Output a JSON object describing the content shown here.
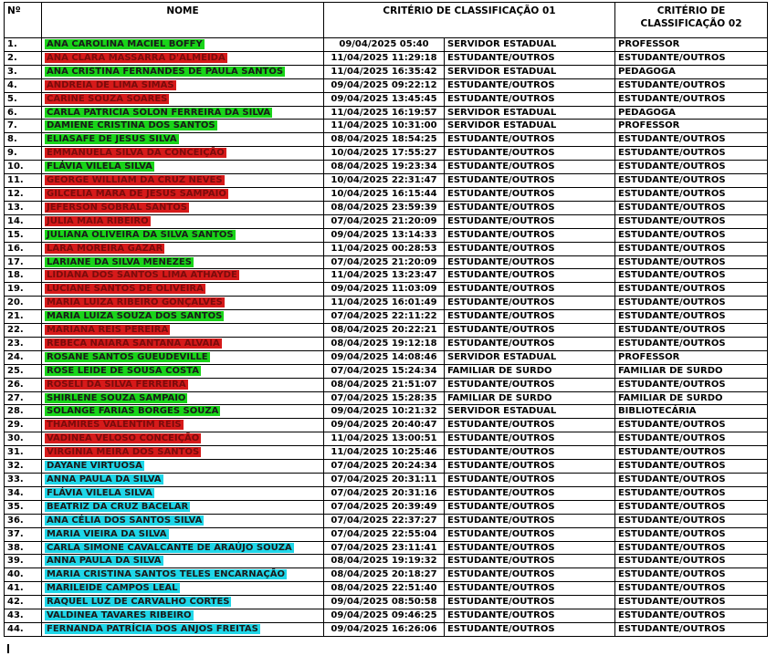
{
  "headers": {
    "num": "Nº",
    "nome": "NOME",
    "criterio1": "CRITÉRIO DE CLASSIFICAÇÃO 01",
    "criterio2": "CRITÉRIO DE CLASSIFICAÇÃO 02"
  },
  "colors": {
    "green": "#19d419",
    "red": "#d61a1a",
    "cyan": "#1fd6e8"
  },
  "rows": [
    {
      "n": "1.",
      "name": "ANA CAROLINA MACIEL BOFFY",
      "hl": "green",
      "date": "09/04/2025 05:40",
      "c1": "SERVIDOR ESTADUAL",
      "c2": "PROFESSOR"
    },
    {
      "n": "2.",
      "name": "ANA CLARA MASSARRA D'ALMEIDA",
      "hl": "red",
      "date": "11/04/2025 11:29:18",
      "c1": "ESTUDANTE/OUTROS",
      "c2": "ESTUDANTE/OUTROS"
    },
    {
      "n": "3.",
      "name": "ANA CRISTINA FERNANDES DE PAULA SANTOS",
      "hl": "green",
      "date": "11/04/2025 16:35:42",
      "c1": "SERVIDOR ESTADUAL",
      "c2": "PEDAGOGA"
    },
    {
      "n": "4.",
      "name": "ANDREIA DE LIMA SIMAS",
      "hl": "red",
      "date": "09/04/2025 09:22:12",
      "c1": "ESTUDANTE/OUTROS",
      "c2": "ESTUDANTE/OUTROS"
    },
    {
      "n": "5.",
      "name": "CARINE SOUZA SOARES",
      "hl": "red",
      "date": "09/04/2025 13:45:45",
      "c1": "ESTUDANTE/OUTROS",
      "c2": "ESTUDANTE/OUTROS"
    },
    {
      "n": "6.",
      "name": "CARLA PATRICIA SOLON FERREIRA DA SILVA",
      "hl": "green",
      "date": "11/04/2025 16:19:57",
      "c1": "SERVIDOR ESTADUAL",
      "c2": "PEDAGOGA"
    },
    {
      "n": "7.",
      "name": "DAMIENE CRISTINA DOS SANTOS",
      "hl": "green",
      "date": "11/04/2025 10:31:00",
      "c1": "SERVIDOR ESTADUAL",
      "c2": "PROFESSOR"
    },
    {
      "n": "8.",
      "name": "ELIASAFE DE JESUS SILVA",
      "hl": "green",
      "date": "08/04/2025 18:54:25",
      "c1": "ESTUDANTE/OUTROS",
      "c2": "ESTUDANTE/OUTROS"
    },
    {
      "n": "9.",
      "name": "EMMANUELA SILVA DA CONCEIÇÃO",
      "hl": "red",
      "date": "10/04/2025 17:55:27",
      "c1": "ESTUDANTE/OUTROS",
      "c2": "ESTUDANTE/OUTROS"
    },
    {
      "n": "10.",
      "name": "FLÁVIA VILELA SILVA",
      "hl": "green",
      "date": "08/04/2025 19:23:34",
      "c1": "ESTUDANTE/OUTROS",
      "c2": "ESTUDANTE/OUTROS"
    },
    {
      "n": "11.",
      "name": "GEORGE WILLIAM DA CRUZ NEVES",
      "hl": "red",
      "date": "10/04/2025 22:31:47",
      "c1": "ESTUDANTE/OUTROS",
      "c2": "ESTUDANTE/OUTROS"
    },
    {
      "n": "12.",
      "name": "GILCELIA MARA DE JESUS SAMPAIO",
      "hl": "red",
      "date": "10/04/2025 16:15:44",
      "c1": "ESTUDANTE/OUTROS",
      "c2": "ESTUDANTE/OUTROS"
    },
    {
      "n": "13.",
      "name": "JEFERSON SOBRAL SANTOS",
      "hl": "red",
      "date": "08/04/2025 23:59:39",
      "c1": "ESTUDANTE/OUTROS",
      "c2": "ESTUDANTE/OUTROS"
    },
    {
      "n": "14.",
      "name": "JULIA MAIA RIBEIRO",
      "hl": "red",
      "date": "07/04/2025 21:20:09",
      "c1": "ESTUDANTE/OUTROS",
      "c2": "ESTUDANTE/OUTROS"
    },
    {
      "n": "15.",
      "name": "JULIANA OLIVEIRA DA SILVA SANTOS",
      "hl": "green",
      "date": "09/04/2025 13:14:33",
      "c1": "ESTUDANTE/OUTROS",
      "c2": "ESTUDANTE/OUTROS"
    },
    {
      "n": "16.",
      "name": "LARA MOREIRA GAZAR",
      "hl": "red",
      "date": "11/04/2025 00:28:53",
      "c1": "ESTUDANTE/OUTROS",
      "c2": "ESTUDANTE/OUTROS"
    },
    {
      "n": "17.",
      "name": "LARIANE DA SILVA MENEZES",
      "hl": "green",
      "date": "07/04/2025 21:20:09",
      "c1": "ESTUDANTE/OUTROS",
      "c2": "ESTUDANTE/OUTROS"
    },
    {
      "n": "18.",
      "name": "LIDIANA DOS SANTOS LIMA ATHAYDE",
      "hl": "red",
      "date": "11/04/2025 13:23:47",
      "c1": "ESTUDANTE/OUTROS",
      "c2": "ESTUDANTE/OUTROS"
    },
    {
      "n": "19.",
      "name": "LUCIANE SANTOS DE OLIVEIRA",
      "hl": "red",
      "date": "09/04/2025 11:03:09",
      "c1": "ESTUDANTE/OUTROS",
      "c2": "ESTUDANTE/OUTROS"
    },
    {
      "n": "20.",
      "name": "MARIA LUIZA RIBEIRO GONÇALVES",
      "hl": "red",
      "date": "11/04/2025 16:01:49",
      "c1": "ESTUDANTE/OUTROS",
      "c2": "ESTUDANTE/OUTROS"
    },
    {
      "n": "21.",
      "name": "MARIA LUIZA SOUZA DOS SANTOS",
      "hl": "green",
      "date": "07/04/2025 22:11:22",
      "c1": "ESTUDANTE/OUTROS",
      "c2": "ESTUDANTE/OUTROS"
    },
    {
      "n": "22.",
      "name": "MARIANA REIS PEREIRA",
      "hl": "red",
      "date": "08/04/2025 20:22:21",
      "c1": "ESTUDANTE/OUTROS",
      "c2": "ESTUDANTE/OUTROS"
    },
    {
      "n": "23.",
      "name": "REBECA NAIARA SANTANA ALVAIA",
      "hl": "red",
      "date": "08/04/2025 19:12:18",
      "c1": "ESTUDANTE/OUTROS",
      "c2": "ESTUDANTE/OUTROS"
    },
    {
      "n": "24.",
      "name": "ROSANE SANTOS GUEUDEVILLE",
      "hl": "green",
      "date": "09/04/2025 14:08:46",
      "c1": "SERVIDOR ESTADUAL",
      "c2": "PROFESSOR"
    },
    {
      "n": "25.",
      "name": "ROSE LEIDE DE SOUSA COSTA",
      "hl": "green",
      "date": "07/04/2025 15:24:34",
      "c1": "FAMILIAR DE SURDO",
      "c2": "FAMILIAR DE SURDO"
    },
    {
      "n": "26.",
      "name": "ROSELI DA SILVA FERREIRA",
      "hl": "red",
      "date": "08/04/2025 21:51:07",
      "c1": "ESTUDANTE/OUTROS",
      "c2": "ESTUDANTE/OUTROS"
    },
    {
      "n": "27.",
      "name": "SHIRLENE SOUZA SAMPAIO",
      "hl": "green",
      "date": "07/04/2025 15:28:35",
      "c1": "FAMILIAR DE SURDO",
      "c2": "FAMILIAR DE SURDO"
    },
    {
      "n": "28.",
      "name": "SOLANGE FARIAS BORGES SOUZA",
      "hl": "green",
      "date": "09/04/2025 10:21:32",
      "c1": "SERVIDOR ESTADUAL",
      "c2": "BIBLIOTECÁRIA"
    },
    {
      "n": "29.",
      "name": "THAMIRES VALENTIM REIS",
      "hl": "red",
      "date": "09/04/2025 20:40:47",
      "c1": "ESTUDANTE/OUTROS",
      "c2": "ESTUDANTE/OUTROS"
    },
    {
      "n": "30.",
      "name": "VADINEA VELOSO CONCEIÇÃO",
      "hl": "red",
      "date": "11/04/2025 13:00:51",
      "c1": "ESTUDANTE/OUTROS",
      "c2": "ESTUDANTE/OUTROS"
    },
    {
      "n": "31.",
      "name": "VIRGINIA MEIRA DOS SANTOS",
      "hl": "red",
      "date": "11/04/2025 10:25:46",
      "c1": "ESTUDANTE/OUTROS",
      "c2": "ESTUDANTE/OUTROS"
    },
    {
      "n": "32.",
      "name": "DAYANE VIRTUOSA",
      "hl": "cyan",
      "date": "07/04/2025 20:24:34",
      "c1": "ESTUDANTE/OUTROS",
      "c2": "ESTUDANTE/OUTROS"
    },
    {
      "n": "33.",
      "name": "ANNA PAULA DA SILVA",
      "hl": "cyan",
      "date": "07/04/2025 20:31:11",
      "c1": "ESTUDANTE/OUTROS",
      "c2": "ESTUDANTE/OUTROS"
    },
    {
      "n": "34.",
      "name": "FLÁVIA VILELA SILVA",
      "hl": "cyan",
      "date": "07/04/2025 20:31:16",
      "c1": "ESTUDANTE/OUTROS",
      "c2": "ESTUDANTE/OUTROS"
    },
    {
      "n": "35.",
      "name": "BEATRIZ DA CRUZ BACELAR",
      "hl": "cyan",
      "date": "07/04/2025 20:39:49",
      "c1": "ESTUDANTE/OUTROS",
      "c2": "ESTUDANTE/OUTROS"
    },
    {
      "n": "36.",
      "name": "ANA CÉLIA DOS SANTOS SILVA",
      "hl": "cyan",
      "date": "07/04/2025 22:37:27",
      "c1": "ESTUDANTE/OUTROS",
      "c2": "ESTUDANTE/OUTROS"
    },
    {
      "n": "37.",
      "name": "MARIA VIEIRA DA SILVA",
      "hl": "cyan",
      "date": "07/04/2025 22:55:04",
      "c1": "ESTUDANTE/OUTROS",
      "c2": "ESTUDANTE/OUTROS"
    },
    {
      "n": "38.",
      "name": "CARLA SIMONE CAVALCANTE DE ARAÚJO SOUZA",
      "hl": "cyan",
      "date": "07/04/2025 23:11:41",
      "c1": "ESTUDANTE/OUTROS",
      "c2": "ESTUDANTE/OUTROS"
    },
    {
      "n": "39.",
      "name": "ANNA PAULA DA SILVA",
      "hl": "cyan",
      "date": "08/04/2025 19:19:32",
      "c1": "ESTUDANTE/OUTROS",
      "c2": "ESTUDANTE/OUTROS"
    },
    {
      "n": "40.",
      "name": "MARIA CRISTINA SANTOS TELES ENCARNAÇÃO",
      "hl": "cyan",
      "date": "08/04/2025 20:18:27",
      "c1": "ESTUDANTE/OUTROS",
      "c2": "ESTUDANTE/OUTROS"
    },
    {
      "n": "41.",
      "name": "MARILEIDE CAMPOS LEAL",
      "hl": "cyan",
      "date": "08/04/2025 22:51:40",
      "c1": "ESTUDANTE/OUTROS",
      "c2": "ESTUDANTE/OUTROS"
    },
    {
      "n": "42.",
      "name": "RAQUEL LUZ DE CARVALHO CORTES",
      "hl": "cyan",
      "date": "09/04/2025 08:50:58",
      "c1": "ESTUDANTE/OUTROS",
      "c2": "ESTUDANTE/OUTROS"
    },
    {
      "n": "43.",
      "name": "VALDINEA TAVARES RIBEIRO",
      "hl": "cyan",
      "date": "09/04/2025 09:46:25",
      "c1": "ESTUDANTE/OUTROS",
      "c2": "ESTUDANTE/OUTROS"
    },
    {
      "n": "44.",
      "name": "FERNANDA PATRÍCIA DOS ANJOS FREITAS",
      "hl": "cyan",
      "date": "09/04/2025 16:26:06",
      "c1": "ESTUDANTE/OUTROS",
      "c2": "ESTUDANTE/OUTROS"
    }
  ]
}
